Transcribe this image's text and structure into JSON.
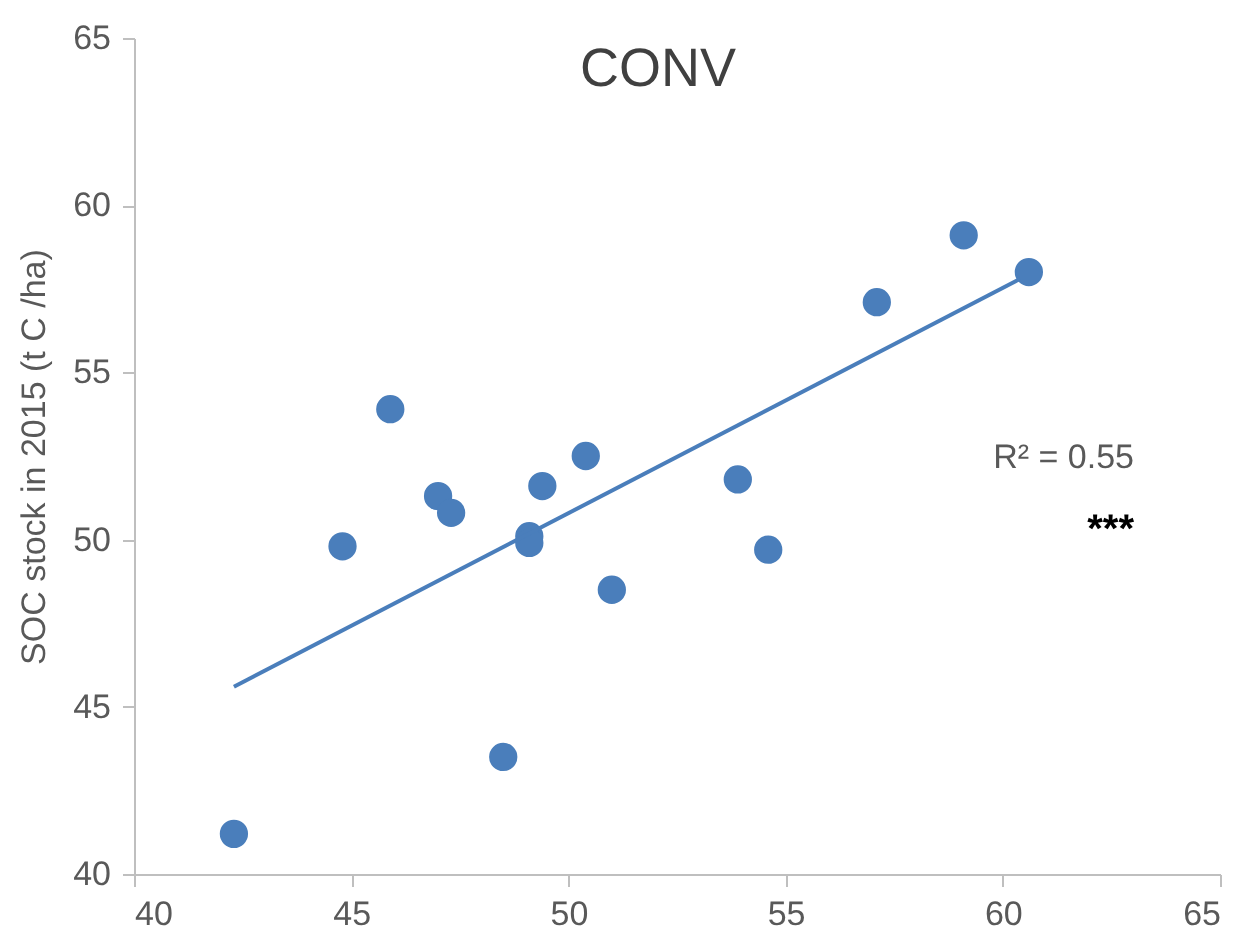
{
  "chart_data": {
    "type": "scatter",
    "title": "CONV",
    "ylabel": "SOC stock in 2015 (t C /ha)",
    "xlim": [
      40,
      65
    ],
    "xticks": [
      40,
      45,
      50,
      55,
      60,
      65
    ],
    "ylim": [
      40,
      65
    ],
    "yticks": [
      40,
      45,
      50,
      55,
      60,
      65
    ],
    "grid": false,
    "annotations": [
      "R² = 0.55",
      "***"
    ],
    "series": [
      {
        "color": "#4a7ebb",
        "marker": "circle",
        "x": [
          42.3,
          44.8,
          45.9,
          47.0,
          47.3,
          48.5,
          49.1,
          49.1,
          49.4,
          50.4,
          51.0,
          53.9,
          54.6,
          57.1,
          59.1,
          60.6
        ],
        "values": [
          41.2,
          49.8,
          53.9,
          51.3,
          50.8,
          43.5,
          50.1,
          49.9,
          51.6,
          52.5,
          48.5,
          51.8,
          49.7,
          57.1,
          59.1,
          58.0
        ]
      },
      {
        "type": "line",
        "marker": "none",
        "color": "#4a7ebb",
        "x": [
          42.3,
          60.4
        ],
        "values": [
          45.6,
          57.8
        ]
      }
    ]
  }
}
